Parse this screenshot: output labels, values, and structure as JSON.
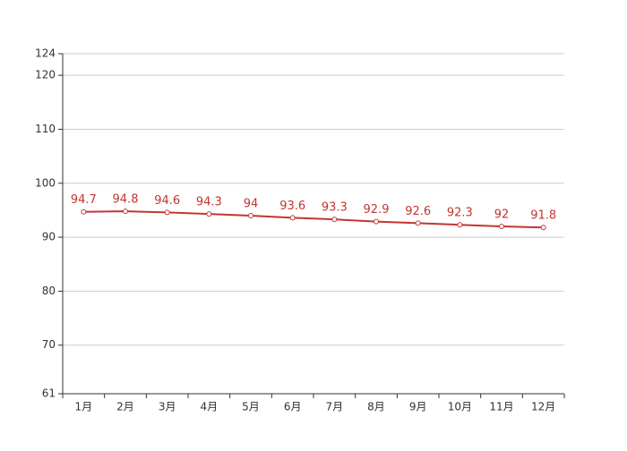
{
  "chart_data": {
    "type": "line",
    "categories": [
      "1月",
      "2月",
      "3月",
      "4月",
      "5月",
      "6月",
      "7月",
      "8月",
      "9月",
      "10月",
      "11月",
      "12月"
    ],
    "series": [
      {
        "color": "#c23531",
        "values": [
          94.7,
          94.8,
          94.6,
          94.3,
          94,
          93.6,
          93.3,
          92.9,
          92.6,
          92.3,
          92,
          91.8
        ]
      }
    ],
    "ylim": [
      61,
      124
    ],
    "yticks": [
      61,
      70,
      80,
      90,
      100,
      110,
      120,
      124
    ],
    "grid": true
  }
}
